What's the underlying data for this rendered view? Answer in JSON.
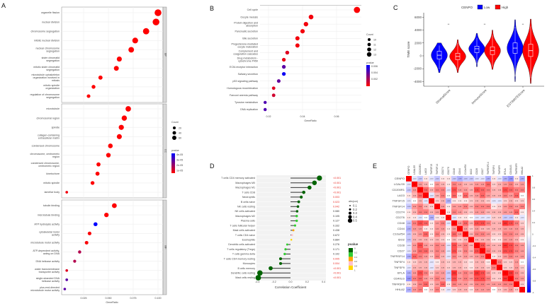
{
  "panel_labels": [
    "A",
    "B",
    "C",
    "D",
    "E"
  ],
  "chart_data": [
    {
      "panel": "A",
      "type": "scatter",
      "xlabel": "GeneRatio",
      "xticks": [
        0.025,
        0.05,
        0.075,
        0.1
      ],
      "xlim": [
        0.005,
        0.104
      ],
      "size_legend": {
        "title": "Count",
        "values": [
          "20",
          "40",
          "60"
        ]
      },
      "color_legend": {
        "title": "pvalue",
        "labels": [
          "4e-05",
          "3e-05",
          "2e-05",
          "1e-05"
        ],
        "colors": [
          "#0000ff",
          "#ff0000"
        ],
        "range": [
          0,
          4e-05
        ]
      },
      "facets": [
        {
          "name": "BP",
          "terms": [
            {
              "term": "organelle fission",
              "ratio": 0.1,
              "pvalue": 1e-07
            },
            {
              "term": "nuclear division",
              "ratio": 0.098,
              "pvalue": 1e-07
            },
            {
              "term": "chromosome segregation",
              "ratio": 0.088,
              "pvalue": 1e-07
            },
            {
              "term": "mitotic nuclear division",
              "ratio": 0.077,
              "pvalue": 1e-07
            },
            {
              "term": "nuclear chromosome segregation",
              "ratio": 0.073,
              "pvalue": 1e-07
            },
            {
              "term": "sister chromatid segregation",
              "ratio": 0.061,
              "pvalue": 1e-07
            },
            {
              "term": "mitotic sister chromatid segregation",
              "ratio": 0.058,
              "pvalue": 1e-07
            },
            {
              "term": "microtubule cytoskeleton organization involved in mitosis",
              "ratio": 0.042,
              "pvalue": 1e-07
            },
            {
              "term": "mitotic spindle organization",
              "ratio": 0.035,
              "pvalue": 1e-07
            },
            {
              "term": "regulation of chromosome segregation",
              "ratio": 0.03,
              "pvalue": 1e-07
            }
          ]
        },
        {
          "name": "CC",
          "terms": [
            {
              "term": "microtubule",
              "ratio": 0.07,
              "pvalue": 1e-07
            },
            {
              "term": "chromosomal region",
              "ratio": 0.066,
              "pvalue": 1e-07
            },
            {
              "term": "spindle",
              "ratio": 0.063,
              "pvalue": 1e-07
            },
            {
              "term": "collagen-containing extracellular matrix",
              "ratio": 0.061,
              "pvalue": 1e-07
            },
            {
              "term": "condensed chromosome",
              "ratio": 0.052,
              "pvalue": 1e-07
            },
            {
              "term": "chromosome, centromeric region",
              "ratio": 0.05,
              "pvalue": 1e-07
            },
            {
              "term": "condensed chromosome, centromeric region",
              "ratio": 0.04,
              "pvalue": 1e-07
            },
            {
              "term": "kinetochore",
              "ratio": 0.039,
              "pvalue": 1e-07
            },
            {
              "term": "mitotic spindle",
              "ratio": 0.034,
              "pvalue": 1e-07
            },
            {
              "term": "lamellar body",
              "ratio": 0.008,
              "pvalue": 2e-06
            }
          ]
        },
        {
          "name": "MF",
          "terms": [
            {
              "term": "tubulin binding",
              "ratio": 0.056,
              "pvalue": 1e-07
            },
            {
              "term": "microtubule binding",
              "ratio": 0.048,
              "pvalue": 1e-07
            },
            {
              "term": "ATP hydrolysis activity",
              "ratio": 0.037,
              "pvalue": 4e-05
            },
            {
              "term": "cytoskeletal motor activity",
              "ratio": 0.031,
              "pvalue": 1e-06
            },
            {
              "term": "microtubule motor activity",
              "ratio": 0.028,
              "pvalue": 1e-06
            },
            {
              "term": "ATP-dependent activity, acting on DNA",
              "ratio": 0.021,
              "pvalue": 1.2e-05
            },
            {
              "term": "DNA helicase activity",
              "ratio": 0.016,
              "pvalue": 1.2e-05
            },
            {
              "term": "water transmembrane transporter activity",
              "ratio": 0.008,
              "pvalue": 5e-06
            },
            {
              "term": "single-stranded DNA helicase activity",
              "ratio": 0.008,
              "pvalue": 2.6e-05
            },
            {
              "term": "plus-end-directed microtubule motor activity",
              "ratio": 0.006,
              "pvalue": 2.6e-05
            }
          ]
        }
      ]
    },
    {
      "panel": "B",
      "type": "scatter",
      "xlabel": "GeneRatio",
      "xticks": [
        0.02,
        0.04,
        0.06
      ],
      "size_legend": {
        "title": "Count",
        "values": [
          "10",
          "11",
          "12",
          "13"
        ]
      },
      "color_legend": {
        "title": "pvalue",
        "labels": [
          "0.006",
          "0.004",
          "0.002"
        ],
        "colors": [
          "#0000ff",
          "#ff0000"
        ],
        "range": [
          0,
          0.0065
        ]
      },
      "terms": [
        {
          "term": "Cell cycle",
          "ratio": 0.072,
          "pvalue": 0.0001
        },
        {
          "term": "Oocyte meiosis",
          "ratio": 0.045,
          "pvalue": 0.0003
        },
        {
          "term": "Protein digestion and absorption",
          "ratio": 0.042,
          "pvalue": 0.0003
        },
        {
          "term": "Pancreatic secretion",
          "ratio": 0.04,
          "pvalue": 0.0003
        },
        {
          "term": "Bile secretion",
          "ratio": 0.037,
          "pvalue": 0.0003
        },
        {
          "term": "Progesterone-mediated oocyte maturation",
          "ratio": 0.037,
          "pvalue": 0.0003
        },
        {
          "term": "Complement and coagulation cascades",
          "ratio": 0.031,
          "pvalue": 0.0008
        },
        {
          "term": "Drug metabolism - cytochrome P450",
          "ratio": 0.029,
          "pvalue": 0.0005
        },
        {
          "term": "ECM-receptor interaction",
          "ratio": 0.029,
          "pvalue": 0.0042
        },
        {
          "term": "Salivary secretion",
          "ratio": 0.029,
          "pvalue": 0.0062
        },
        {
          "term": "p53 signaling pathway",
          "ratio": 0.026,
          "pvalue": 0.004
        },
        {
          "term": "Homologous recombination",
          "ratio": 0.023,
          "pvalue": 0.0008
        },
        {
          "term": "Fanconi anemia pathway",
          "ratio": 0.023,
          "pvalue": 0.0012
        },
        {
          "term": "Tyrosine metabolism",
          "ratio": 0.018,
          "pvalue": 0.0045
        },
        {
          "term": "DNA replication",
          "ratio": 0.018,
          "pvalue": 0.0045
        }
      ]
    },
    {
      "panel": "C",
      "type": "violin",
      "ylabel": "TIME score",
      "yticks": [
        -4000,
        -2000,
        0,
        2000,
        4000,
        6000
      ],
      "ylim": [
        -4500,
        6300
      ],
      "legend": {
        "title": "CENPO",
        "entries": [
          {
            "name": "Low",
            "color": "#0000ff"
          },
          {
            "name": "High",
            "color": "#ff0000"
          }
        ]
      },
      "categories": [
        "StromalScore",
        "ImmuneScore",
        "ESTIMATEScore"
      ],
      "significance": [
        "**",
        "**",
        "**"
      ],
      "groups": [
        {
          "Low": {
            "min": -2600,
            "q1": -500,
            "median": 100,
            "q3": 700,
            "max": 2000
          },
          "High": {
            "min": -2600,
            "q1": -600,
            "median": -100,
            "q3": 400,
            "max": 2500
          }
        },
        {
          "Low": {
            "min": -1700,
            "q1": 500,
            "median": 1100,
            "q3": 1500,
            "max": 3500
          },
          "High": {
            "min": -2100,
            "q1": 200,
            "median": 800,
            "q3": 1400,
            "max": 4000
          }
        },
        {
          "Low": {
            "min": -4000,
            "q1": 400,
            "median": 1200,
            "q3": 2000,
            "max": 5600
          },
          "High": {
            "min": -4300,
            "q1": -100,
            "median": 800,
            "q3": 1800,
            "max": 5700
          }
        }
      ]
    },
    {
      "panel": "D",
      "type": "lollipop",
      "xlabel": "Correlation Coefficient",
      "xticks": [
        -0.4,
        -0.2,
        0.0,
        0.2,
        0.4
      ],
      "size_legend": {
        "title": "abs(cor)",
        "values": [
          "0.1",
          "0.2",
          "0.3",
          "0.4",
          "0.5"
        ]
      },
      "color_legend": {
        "title": "pvalue",
        "labels": [
          "0",
          "0.2",
          "0.4",
          "0.6",
          "0.8",
          "1"
        ],
        "colors": [
          "#006400",
          "#32cd32",
          "#ffa500",
          "#ffc0cb",
          "#ffd700"
        ]
      },
      "rows": [
        {
          "cell": "T cells CD4 memory activated",
          "cor": 0.35,
          "pvalue": 0.0001,
          "plabel": "<0.001"
        },
        {
          "cell": "Macrophages M0",
          "cor": 0.29,
          "pvalue": 0.0001,
          "plabel": "<0.001"
        },
        {
          "cell": "Macrophages M1",
          "cor": 0.23,
          "pvalue": 0.0001,
          "plabel": "<0.001"
        },
        {
          "cell": "T cells CD8",
          "cor": 0.16,
          "pvalue": 0.0001,
          "plabel": "<0.001"
        },
        {
          "cell": "Neutrophils",
          "cor": 0.13,
          "pvalue": 0.003,
          "plabel": "0.003"
        },
        {
          "cell": "B cells naive",
          "cor": 0.1,
          "pvalue": 0.023,
          "plabel": "0.023"
        },
        {
          "cell": "NK cells resting",
          "cor": 0.09,
          "pvalue": 0.042,
          "plabel": "0.042"
        },
        {
          "cell": "NK cells activated",
          "cor": 0.08,
          "pvalue": 0.08,
          "plabel": "0.080"
        },
        {
          "cell": "Macrophages M2",
          "cor": 0.075,
          "pvalue": 0.105,
          "plabel": "0.105"
        },
        {
          "cell": "Plasma cells",
          "cor": 0.075,
          "pvalue": 0.127,
          "plabel": "0.127"
        },
        {
          "cell": "T cells follicular helper",
          "cor": 0.055,
          "pvalue": 0.332,
          "plabel": "0.332"
        },
        {
          "cell": "Mast cells activated",
          "cor": 0.035,
          "pvalue": 0.438,
          "plabel": "0.438"
        },
        {
          "cell": "T cells CD4 naive",
          "cor": 0.02,
          "pvalue": 0.672,
          "plabel": "0.672"
        },
        {
          "cell": "Eosinophils",
          "cor": 0.01,
          "pvalue": 0.884,
          "plabel": "0.884"
        },
        {
          "cell": "Dendritic cells activated",
          "cor": -0.04,
          "pvalue": 0.276,
          "plabel": "0.276"
        },
        {
          "cell": "T cells regulatory (Tregs)",
          "cor": -0.06,
          "pvalue": 0.171,
          "plabel": "0.171"
        },
        {
          "cell": "T cells gamma delta",
          "cor": -0.07,
          "pvalue": 0.102,
          "plabel": "0.102"
        },
        {
          "cell": "T cells CD4 memory resting",
          "cor": -0.12,
          "pvalue": 0.005,
          "plabel": "0.005"
        },
        {
          "cell": "Monocytes",
          "cor": -0.12,
          "pvalue": 0.004,
          "plabel": "0.004"
        },
        {
          "cell": "B cells memory",
          "cor": -0.24,
          "pvalue": 0.0001,
          "plabel": "<0.001"
        },
        {
          "cell": "Dendritic cells resting",
          "cor": -0.37,
          "pvalue": 0.0001,
          "plabel": "<0.001"
        },
        {
          "cell": "Mast cells resting",
          "cor": -0.39,
          "pvalue": 0.0001,
          "plabel": "<0.001"
        }
      ]
    },
    {
      "panel": "E",
      "type": "heatmap",
      "genes": [
        "CENPO",
        "LGALS9",
        "CD200R1",
        "LAG3",
        "TNFSF15",
        "TNFSF14",
        "CD274",
        "CD276",
        "CD48",
        "CD44",
        "C10orf54",
        "IDO2",
        "CD28",
        "CD27",
        "TNFRSF14",
        "TNFSF4",
        "TNFSF9",
        "BTLA",
        "CD40LG",
        "TNFRSF9",
        "HHLA2"
      ],
      "colorbar": {
        "ticks": [
          "1",
          "0.8",
          "0.6",
          "0.4",
          "0.2",
          "0",
          "-0.2",
          "-0.4",
          "-0.6",
          "-0.8",
          "-1"
        ],
        "colors": [
          "#0000ff",
          "#ffffff",
          "#ff0000"
        ]
      },
      "lower_triangle": [
        [
          -0.1
        ],
        [
          -0.2,
          0.4
        ],
        [
          0.1,
          0.3,
          0.6
        ],
        [
          -0.1,
          0.0,
          0.3,
          -0.1
        ],
        [
          -0.2,
          0.4,
          0.5,
          0.3,
          0.2
        ],
        [
          0.1,
          0.3,
          0.5,
          0.5,
          0.3,
          0.4
        ],
        [
          0.1,
          0.1,
          -0.1,
          0.0,
          -0.3,
          0.1,
          0.1
        ],
        [
          -0.2,
          0.5,
          0.7,
          0.6,
          0.1,
          0.4,
          0.5,
          -0.1
        ],
        [
          -0.3,
          0.4,
          0.4,
          0.1,
          0.1,
          0.4,
          0.4,
          0.1,
          0.4
        ],
        [
          -0.2,
          0.3,
          0.4,
          0.6,
          0.1,
          0.5,
          0.3,
          0.1,
          0.6,
          0.4
        ],
        [
          -0.2,
          0.3,
          0.3,
          0.3,
          0.2,
          0.3,
          0.2,
          0.0,
          0.3,
          0.2,
          0.3
        ],
        [
          -0.1,
          0.4,
          0.7,
          0.4,
          0.3,
          0.5,
          0.4,
          -0.1,
          0.7,
          0.4,
          0.5,
          0.3
        ],
        [
          -0.1,
          0.4,
          0.6,
          0.6,
          0.3,
          0.5,
          0.4,
          -0.1,
          0.7,
          0.3,
          0.5,
          0.3,
          0.7
        ],
        [
          -0.3,
          0.6,
          0.5,
          0.4,
          0.2,
          0.5,
          0.3,
          -0.1,
          0.5,
          0.3,
          0.4,
          0.3,
          0.4,
          0.5
        ],
        [
          0.1,
          0.2,
          0.3,
          0.3,
          -0.1,
          0.1,
          0.3,
          0.2,
          0.3,
          0.3,
          0.2,
          0.1,
          0.3,
          0.3,
          0.1
        ],
        [
          -0.1,
          0.3,
          0.3,
          0.3,
          -0.1,
          0.2,
          0.3,
          0.2,
          0.3,
          0.3,
          0.2,
          0.1,
          0.3,
          0.3,
          0.2,
          0.5
        ],
        [
          -0.3,
          0.4,
          0.7,
          0.5,
          0.2,
          0.4,
          0.4,
          -0.2,
          0.8,
          0.4,
          0.5,
          0.4,
          0.8,
          0.7,
          0.4,
          0.2,
          0.2
        ],
        [
          -0.4,
          0.5,
          0.6,
          0.4,
          0.3,
          0.5,
          0.4,
          -0.2,
          0.7,
          0.4,
          0.5,
          0.4,
          0.7,
          0.7,
          0.5,
          0.2,
          0.2,
          0.8
        ],
        [
          0.1,
          0.3,
          0.5,
          0.6,
          0.2,
          0.4,
          0.6,
          0.1,
          0.5,
          0.4,
          0.4,
          0.3,
          0.5,
          0.5,
          0.4,
          0.4,
          0.4,
          0.5,
          0.5
        ],
        [
          -0.3,
          0.4,
          0.5,
          0.0,
          0.2,
          0.5,
          0.1,
          -0.1,
          0.2,
          0.3,
          0.3,
          0.1,
          0.4,
          0.4,
          0.4,
          0.0,
          0.2,
          0.3,
          0.4,
          0.2
        ]
      ]
    }
  ]
}
